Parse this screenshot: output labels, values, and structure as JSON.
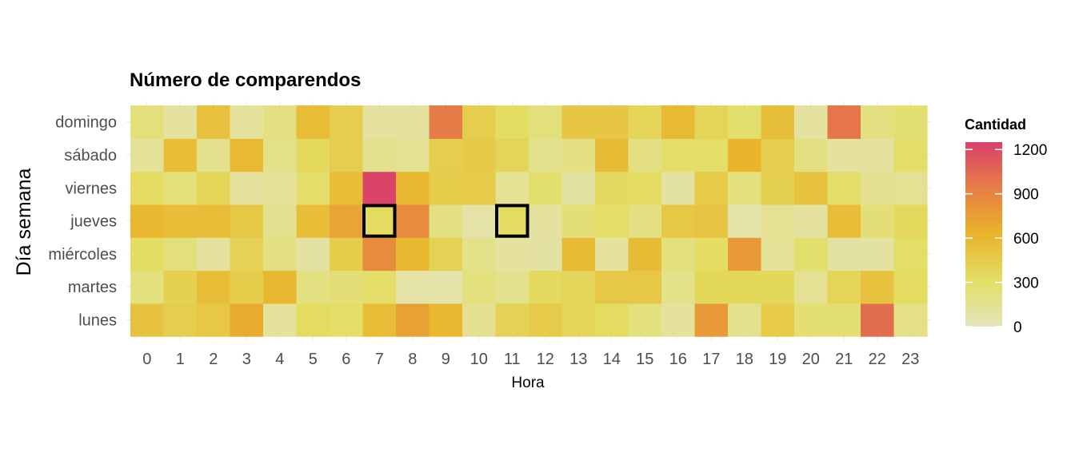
{
  "chart_data": {
    "type": "heatmap",
    "title": "Número de comparendos",
    "xlabel": "Hora",
    "ylabel": "Día semana",
    "x": [
      "0",
      "1",
      "2",
      "3",
      "4",
      "5",
      "6",
      "7",
      "8",
      "9",
      "10",
      "11",
      "12",
      "13",
      "14",
      "15",
      "16",
      "17",
      "18",
      "19",
      "20",
      "21",
      "22",
      "23"
    ],
    "y": [
      "lunes",
      "martes",
      "miércoles",
      "jueves",
      "viernes",
      "sábado",
      "domingo"
    ],
    "values": [
      [
        520,
        430,
        480,
        680,
        120,
        330,
        310,
        560,
        730,
        600,
        160,
        400,
        460,
        380,
        330,
        220,
        120,
        780,
        170,
        460,
        260,
        260,
        1020,
        190
      ],
      [
        220,
        420,
        560,
        450,
        600,
        210,
        250,
        300,
        80,
        70,
        220,
        170,
        340,
        370,
        480,
        480,
        180,
        360,
        360,
        360,
        150,
        380,
        520,
        330
      ],
      [
        320,
        230,
        110,
        400,
        210,
        90,
        450,
        860,
        600,
        400,
        180,
        110,
        90,
        570,
        120,
        570,
        220,
        320,
        780,
        130,
        280,
        100,
        90,
        310
      ],
      [
        600,
        560,
        560,
        480,
        160,
        560,
        720,
        330,
        860,
        200,
        80,
        330,
        110,
        250,
        300,
        200,
        480,
        500,
        70,
        150,
        110,
        560,
        250,
        350
      ],
      [
        330,
        240,
        380,
        110,
        130,
        290,
        550,
        1230,
        600,
        450,
        460,
        140,
        280,
        90,
        340,
        330,
        100,
        460,
        220,
        420,
        520,
        290,
        160,
        140
      ],
      [
        130,
        550,
        170,
        580,
        180,
        350,
        430,
        170,
        150,
        440,
        470,
        380,
        170,
        210,
        570,
        200,
        300,
        300,
        620,
        440,
        210,
        110,
        110,
        300
      ],
      [
        230,
        110,
        530,
        120,
        210,
        550,
        430,
        110,
        110,
        950,
        440,
        320,
        230,
        490,
        490,
        380,
        590,
        380,
        280,
        540,
        110,
        980,
        210,
        260
      ]
    ],
    "highlighted": [
      {
        "x": "7",
        "y": "jueves"
      },
      {
        "x": "11",
        "y": "jueves"
      }
    ],
    "legend": {
      "title": "Cantidad",
      "ticks": [
        0,
        300,
        600,
        900,
        1200
      ],
      "range": [
        0,
        1250
      ],
      "placement": "right"
    },
    "colorscale": [
      "#e4e4bd",
      "#e3de64",
      "#e9b42c",
      "#e77e45",
      "#d9406b"
    ],
    "grid": true
  }
}
